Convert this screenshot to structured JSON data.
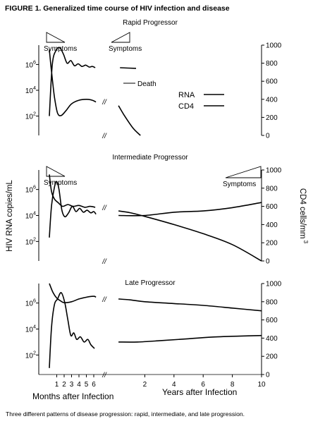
{
  "figure_title": "FIGURE 1. Generalized time course of HIV infection and disease",
  "caption": "Three different patterns of disease progression: rapid, intermediate, and late progression.",
  "left_axis_label": "HIV RNA copies/mL",
  "right_axis_label": "CD4 cells/mm",
  "right_axis_label_sup": "3",
  "x_axis_left_label": "Months after Infection",
  "x_axis_right_label": "Years after Infection",
  "x_ticks_months": [
    "1",
    "2",
    "3",
    "4",
    "5",
    "6"
  ],
  "x_ticks_years": [
    "2",
    "4",
    "6",
    "8",
    "10"
  ],
  "left_ticks": [
    "10",
    "10",
    "10"
  ],
  "left_ticks_sup": [
    "6",
    "4",
    "2"
  ],
  "right_ticks": [
    "1000",
    "800",
    "600",
    "400",
    "200",
    "0"
  ],
  "break_mark": "//",
  "legend": {
    "rna": "RNA",
    "cd4": "CD4"
  },
  "chart_data": [
    {
      "type": "line",
      "title": "Rapid Progressor",
      "annotations": [
        "Symptoms",
        "Symptoms",
        "Death"
      ],
      "series": [
        {
          "name": "RNA",
          "axis": "left",
          "months": [
            [
              0,
              2.0
            ],
            [
              0.4,
              6.0
            ],
            [
              0.9,
              7.1
            ],
            [
              1.4,
              7.3
            ],
            [
              1.9,
              6.8
            ],
            [
              2.4,
              6.1
            ],
            [
              2.9,
              6.3
            ],
            [
              3.4,
              5.9
            ],
            [
              3.9,
              6.05
            ],
            [
              4.4,
              5.85
            ],
            [
              4.9,
              5.95
            ],
            [
              5.4,
              5.8
            ],
            [
              5.8,
              5.85
            ],
            [
              6.2,
              5.75
            ]
          ],
          "years": [
            [
              0.3,
              5.75
            ],
            [
              1.4,
              5.7
            ]
          ]
        },
        {
          "name": "CD4",
          "axis": "right",
          "months": [
            [
              0,
              950
            ],
            [
              0.3,
              700
            ],
            [
              0.7,
              420
            ],
            [
              1.1,
              250
            ],
            [
              1.6,
              220
            ],
            [
              2.3,
              280
            ],
            [
              3.0,
              350
            ],
            [
              4.0,
              390
            ],
            [
              5.0,
              400
            ],
            [
              5.8,
              390
            ],
            [
              6.3,
              370
            ]
          ],
          "years": [
            [
              0.2,
              330
            ],
            [
              0.6,
              220
            ],
            [
              1.2,
              80
            ],
            [
              1.7,
              0
            ]
          ]
        }
      ]
    },
    {
      "type": "line",
      "title": "Intermediate Progressor",
      "annotations": [
        "Symptoms",
        "Symptoms"
      ],
      "series": [
        {
          "name": "RNA",
          "axis": "left",
          "months": [
            [
              0,
              2.3
            ],
            [
              0.3,
              4.8
            ],
            [
              0.7,
              6.2
            ],
            [
              1.0,
              6.6
            ],
            [
              1.3,
              6.0
            ],
            [
              1.7,
              4.4
            ],
            [
              2.1,
              3.9
            ],
            [
              2.6,
              4.2
            ],
            [
              3.1,
              4.7
            ],
            [
              3.6,
              4.3
            ],
            [
              4.1,
              4.55
            ],
            [
              4.6,
              4.25
            ],
            [
              5.1,
              4.4
            ],
            [
              5.6,
              4.2
            ],
            [
              6.0,
              4.3
            ],
            [
              6.3,
              4.1
            ]
          ],
          "years": [
            [
              0.2,
              4.0
            ],
            [
              2,
              4.0
            ],
            [
              4,
              4.25
            ],
            [
              6,
              4.35
            ],
            [
              8,
              4.6
            ],
            [
              10,
              5.0
            ]
          ]
        },
        {
          "name": "CD4",
          "axis": "right",
          "months": [
            [
              0,
              950
            ],
            [
              0.3,
              760
            ],
            [
              0.7,
              680
            ],
            [
              1.2,
              640
            ],
            [
              1.8,
              600
            ],
            [
              2.5,
              620
            ],
            [
              3.2,
              600
            ],
            [
              4.0,
              610
            ],
            [
              4.8,
              590
            ],
            [
              5.5,
              600
            ],
            [
              6.2,
              590
            ]
          ],
          "years": [
            [
              0.2,
              550
            ],
            [
              1,
              530
            ],
            [
              2,
              490
            ],
            [
              4,
              400
            ],
            [
              6,
              300
            ],
            [
              8,
              180
            ],
            [
              10,
              0
            ]
          ]
        }
      ]
    },
    {
      "type": "line",
      "title": "Late Progressor",
      "annotations": [],
      "series": [
        {
          "name": "RNA",
          "axis": "left",
          "months": [
            [
              0,
              1.0
            ],
            [
              0.3,
              4.2
            ],
            [
              0.7,
              5.9
            ],
            [
              1.1,
              6.3
            ],
            [
              1.6,
              6.8
            ],
            [
              2.1,
              6.0
            ],
            [
              2.5,
              4.7
            ],
            [
              2.9,
              3.5
            ],
            [
              3.3,
              3.7
            ],
            [
              3.7,
              3.2
            ],
            [
              4.2,
              3.4
            ],
            [
              4.7,
              3.0
            ],
            [
              5.2,
              3.2
            ],
            [
              5.6,
              2.8
            ],
            [
              6.1,
              2.5
            ]
          ],
          "years": [
            [
              0.2,
              3.0
            ],
            [
              1.5,
              3.0
            ],
            [
              3,
              3.1
            ],
            [
              5,
              3.25
            ],
            [
              7,
              3.4
            ],
            [
              10,
              3.5
            ]
          ]
        },
        {
          "name": "CD4",
          "axis": "right",
          "months": [
            [
              0,
              1000
            ],
            [
              0.5,
              900
            ],
            [
              1.0,
              840
            ],
            [
              1.5,
              810
            ],
            [
              2.0,
              790
            ],
            [
              3.0,
              800
            ],
            [
              4.0,
              830
            ],
            [
              5.0,
              850
            ],
            [
              6.0,
              860
            ],
            [
              6.3,
              850
            ]
          ],
          "years": [
            [
              0.2,
              830
            ],
            [
              1,
              820
            ],
            [
              2,
              800
            ],
            [
              4,
              780
            ],
            [
              6,
              760
            ],
            [
              8,
              730
            ],
            [
              10,
              700
            ]
          ]
        }
      ]
    }
  ]
}
